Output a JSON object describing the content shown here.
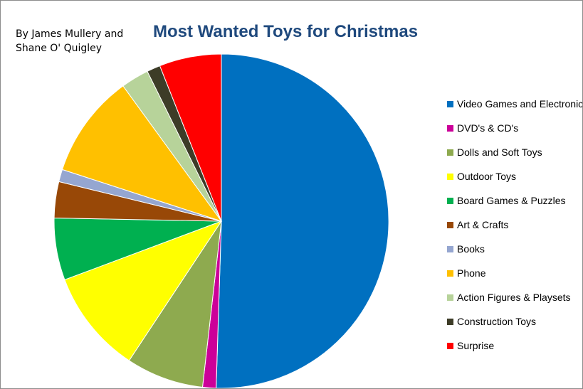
{
  "author": "By James Mullery and Shane O' Quigley",
  "chart_data": {
    "type": "pie",
    "title": "Most Wanted Toys for Christmas",
    "legend_position": "right",
    "categories": [
      "Video Games and Electronics",
      "DVD's & CD's",
      "Dolls and Soft Toys",
      "Outdoor Toys",
      "Board Games & Puzzles",
      "Art & Crafts",
      "Books",
      "Phone",
      "Action Figures & Playsets",
      "Construction Toys",
      "Surprise"
    ],
    "values": [
      50.5,
      1.3,
      7.5,
      10.0,
      6.0,
      3.5,
      1.2,
      10.0,
      2.7,
      1.3,
      6.0
    ],
    "colors": [
      "#0070c0",
      "#cc0099",
      "#8eaa4f",
      "#ffff00",
      "#00b050",
      "#984807",
      "#95a6d0",
      "#ffc000",
      "#b7d39a",
      "#3d3c27",
      "#ff0000"
    ]
  }
}
